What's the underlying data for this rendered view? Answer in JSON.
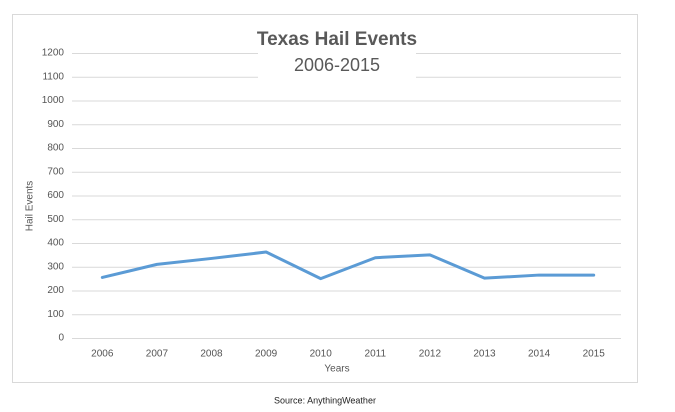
{
  "chart_data": {
    "type": "line",
    "title": "Texas Hail Events",
    "subtitle": "2006-2015",
    "y_label": "Hail Events",
    "x_label": "Years",
    "source": "Source: AnythingWeather",
    "categories": [
      "2006",
      "2007",
      "2008",
      "2009",
      "2010",
      "2011",
      "2012",
      "2013",
      "2014",
      "2015"
    ],
    "values": [
      255,
      310,
      335,
      362,
      250,
      338,
      350,
      252,
      265,
      265
    ],
    "color": "#5b9bd5",
    "ylim": [
      0,
      1200
    ],
    "yticks": [
      0,
      100,
      200,
      300,
      400,
      500,
      600,
      700,
      800,
      900,
      1000,
      1100,
      1200
    ],
    "grid": true
  }
}
